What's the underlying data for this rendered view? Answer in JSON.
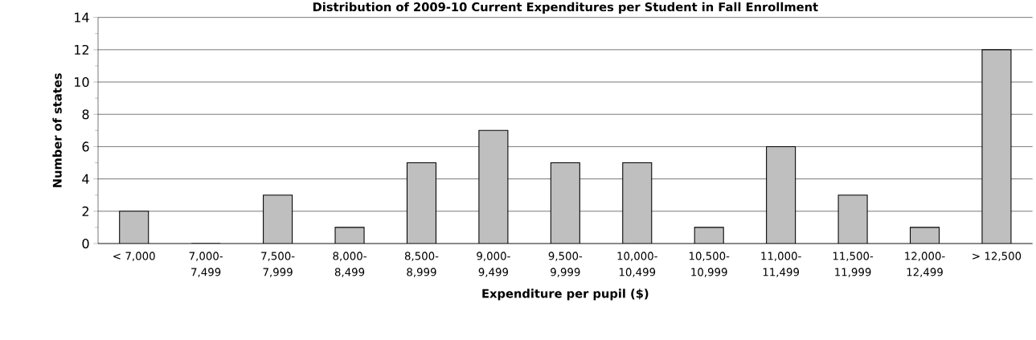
{
  "chart_data": {
    "type": "bar",
    "title": "Distribution of 2009-10 Current Expenditures per Student in Fall Enrollment",
    "xlabel": "Expenditure per pupil ($)",
    "ylabel": "Number of states",
    "categories": [
      "< 7,000",
      "7,000-7,499",
      "7,500-7,999",
      "8,000-8,499",
      "8,500-8,999",
      "9,000-9,499",
      "9,500-9,999",
      "10,000-10,499",
      "10,500-10,999",
      "11,000-11,499",
      "11,500-11,999",
      "12,000-12,499",
      "> 12,500"
    ],
    "values": [
      2,
      0,
      3,
      1,
      5,
      7,
      5,
      5,
      1,
      6,
      3,
      1,
      12
    ],
    "color": "#bfbfbf",
    "ylim": [
      0,
      14
    ],
    "yticks": [
      0,
      {
        "value": 1,
        "label": null
      },
      2,
      {
        "value": 3,
        "label": null
      },
      4,
      {
        "value": 5,
        "label": null
      },
      6,
      {
        "value": 7,
        "label": null
      },
      8,
      {
        "value": 9,
        "label": null
      },
      10,
      {
        "value": 11,
        "label": null
      },
      12,
      {
        "value": 13,
        "label": null
      },
      14
    ],
    "grid": "y"
  }
}
